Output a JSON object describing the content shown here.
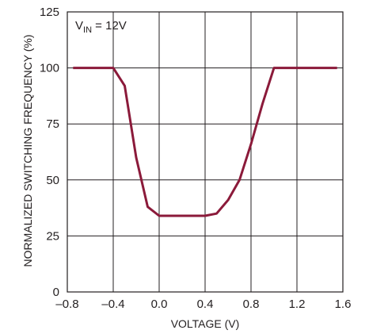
{
  "chart_data": {
    "type": "line",
    "xlabel": "VOLTAGE (V)",
    "ylabel": "NORMALIZED SWITCHING FREQUENCY (%)",
    "xlim": [
      -0.8,
      1.6
    ],
    "ylim": [
      0,
      125
    ],
    "x_ticks": [
      -0.8,
      -0.4,
      0.0,
      0.4,
      0.8,
      1.2,
      1.6
    ],
    "x_tick_labels": [
      "–0.8",
      "–0.4",
      "0.0",
      "0.4",
      "0.8",
      "1.2",
      "1.6"
    ],
    "y_ticks": [
      0,
      25,
      50,
      75,
      100,
      125
    ],
    "y_tick_labels": [
      "0",
      "25",
      "50",
      "75",
      "100",
      "125"
    ],
    "grid": true,
    "annotation": {
      "main": "V",
      "sub": "IN",
      "rest": " = 12V"
    },
    "color": "#8b1a3a",
    "series": [
      {
        "x": [
          -0.75,
          -0.4,
          -0.3,
          -0.2,
          -0.1,
          0.0,
          0.1,
          0.2,
          0.3,
          0.4,
          0.5,
          0.6,
          0.7,
          0.8,
          0.9,
          1.0,
          1.1,
          1.2,
          1.3,
          1.4,
          1.55
        ],
        "y": [
          100,
          100,
          92,
          60,
          38,
          34,
          34,
          34,
          34,
          34,
          35,
          41,
          50,
          66,
          84,
          100,
          100,
          100,
          100,
          100,
          100
        ]
      }
    ]
  }
}
